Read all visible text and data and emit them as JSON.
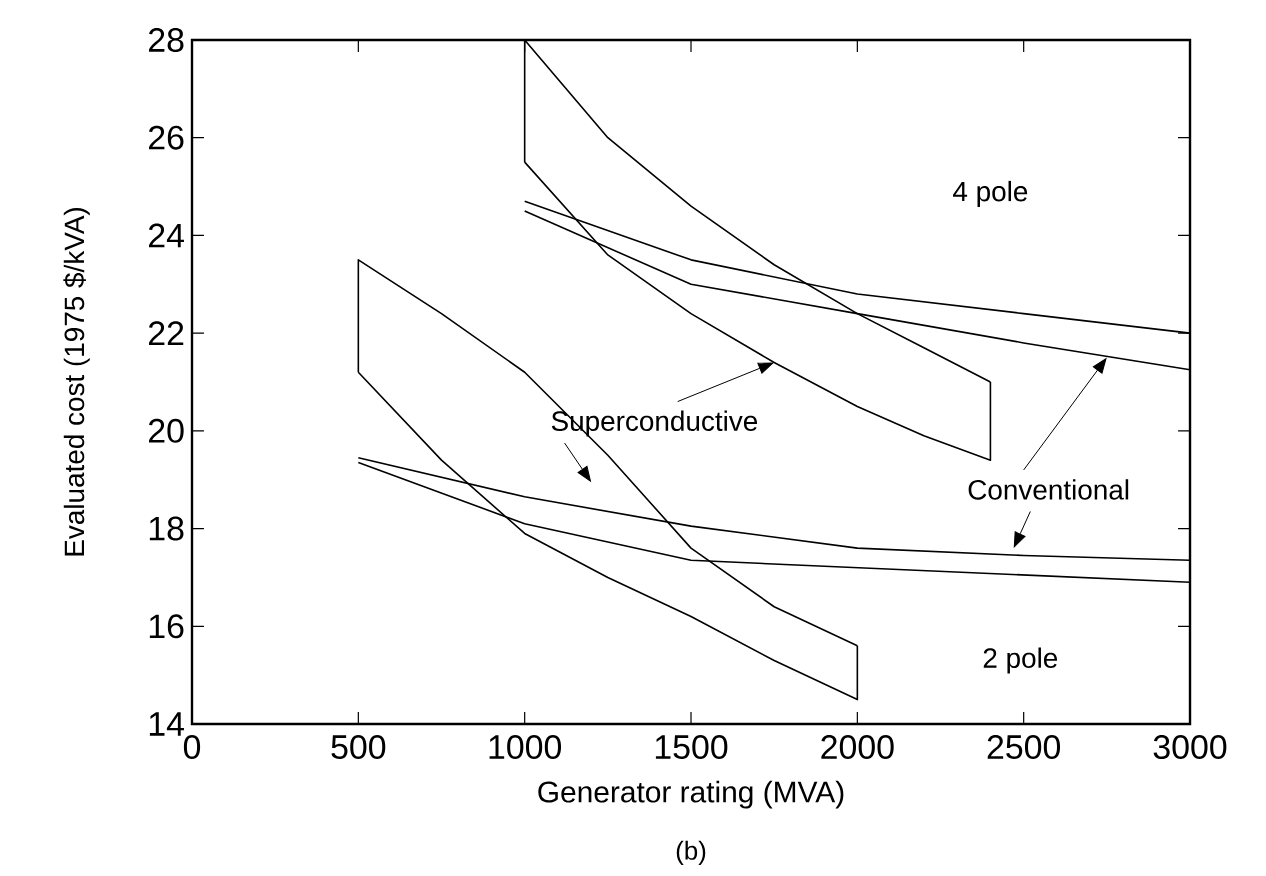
{
  "chart_data": {
    "type": "line",
    "xlabel": "Generator rating (MVA)",
    "ylabel": "Evaluated cost (1975 $/kVA)",
    "xlim": [
      0,
      3000
    ],
    "ylim": [
      14,
      28
    ],
    "xticks": [
      0,
      500,
      1000,
      1500,
      2000,
      2500,
      3000
    ],
    "yticks": [
      14,
      16,
      18,
      20,
      22,
      24,
      26,
      28
    ],
    "series": [
      {
        "color": "#000000",
        "x": [
          1000,
          1000,
          1250,
          1500,
          1750,
          2000,
          2200,
          2400
        ],
        "values": [
          25.5,
          28,
          26.0,
          24.6,
          23.4,
          22.4,
          21.7,
          21.0
        ]
      },
      {
        "color": "#000000",
        "x": [
          1000,
          1250,
          1500,
          1750,
          2000,
          2200,
          2400,
          2400
        ],
        "values": [
          25.5,
          23.6,
          22.4,
          21.4,
          20.5,
          19.9,
          19.4,
          21.0
        ]
      },
      {
        "color": "#000000",
        "x": [
          500,
          500,
          750,
          1000,
          1250,
          1500,
          1750,
          2000
        ],
        "values": [
          21.2,
          23.5,
          22.4,
          21.2,
          19.5,
          17.6,
          16.4,
          15.6
        ]
      },
      {
        "color": "#000000",
        "x": [
          500,
          750,
          1000,
          1250,
          1500,
          1750,
          2000,
          2000
        ],
        "values": [
          21.2,
          19.4,
          17.9,
          17.0,
          16.2,
          15.3,
          14.5,
          15.6
        ]
      },
      {
        "color": "#000000",
        "x": [
          1000,
          1500,
          2000,
          2500,
          3000
        ],
        "values": [
          24.7,
          23.5,
          22.8,
          22.4,
          22.0
        ]
      },
      {
        "color": "#000000",
        "x": [
          1000,
          1500,
          2000,
          2500,
          3000
        ],
        "values": [
          24.5,
          23.0,
          22.4,
          21.8,
          21.25
        ]
      },
      {
        "color": "#000000",
        "x": [
          500,
          1000,
          1500,
          2000,
          2500,
          3000
        ],
        "values": [
          19.45,
          18.65,
          18.05,
          17.6,
          17.45,
          17.35
        ]
      },
      {
        "color": "#000000",
        "x": [
          500,
          1000,
          1500,
          2000,
          2500,
          3000
        ],
        "values": [
          19.35,
          18.1,
          17.35,
          17.2,
          17.05,
          16.9
        ]
      }
    ],
    "annotations": [
      "4 pole",
      "2 pole",
      {
        "text": "Superconductive",
        "x": 1750,
        "y": 21.4
      },
      {
        "text": "Conventional",
        "x": 2750,
        "y": 21.5
      },
      "(b)"
    ]
  }
}
